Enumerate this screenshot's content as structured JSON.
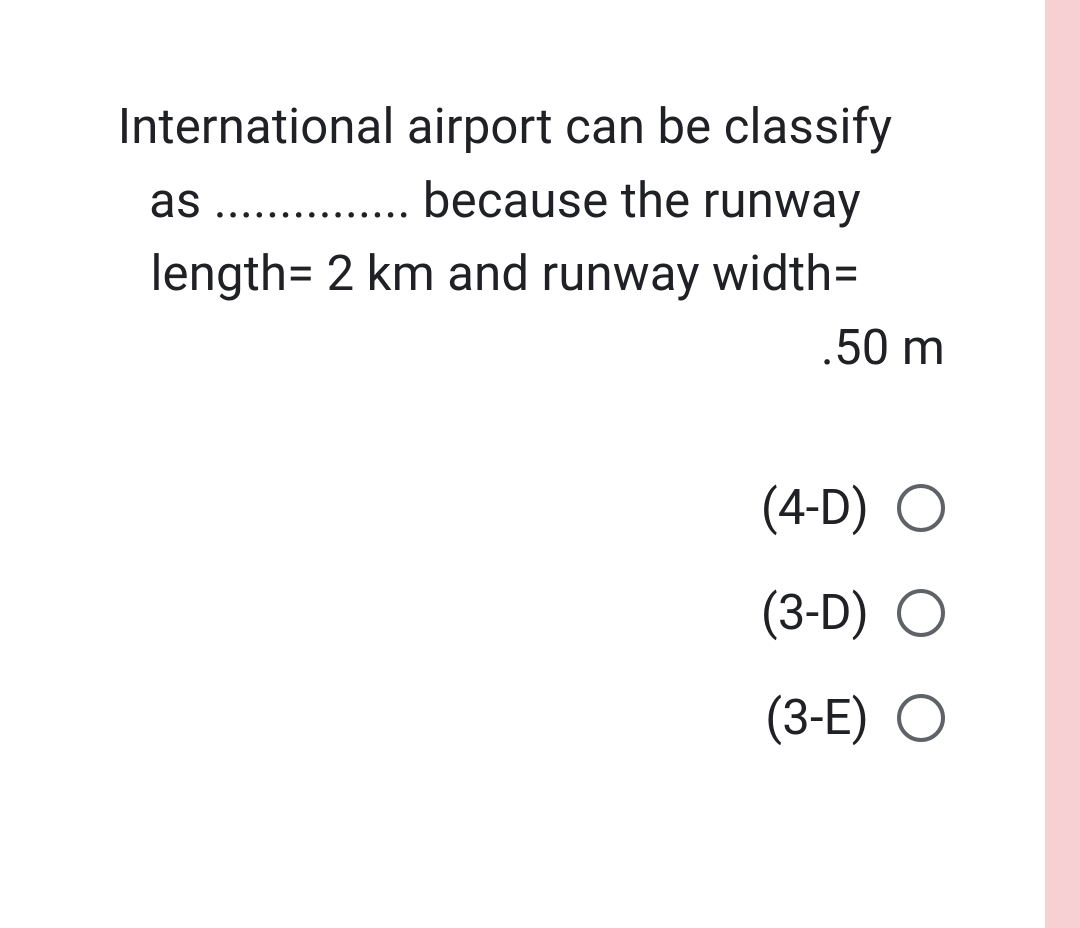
{
  "question": {
    "line1": "International airport can be classify",
    "line2": "as ............... because the runway",
    "line3": "length= 2 km and runway width=",
    "line4": ".50 m"
  },
  "options": [
    {
      "label": "(4-D)"
    },
    {
      "label": "(3-D)"
    },
    {
      "label": "(3-E)"
    }
  ],
  "colors": {
    "text": "#202124",
    "radio_border": "#5f6368",
    "sidebar": "#f7d0d4",
    "background": "#ffffff"
  }
}
